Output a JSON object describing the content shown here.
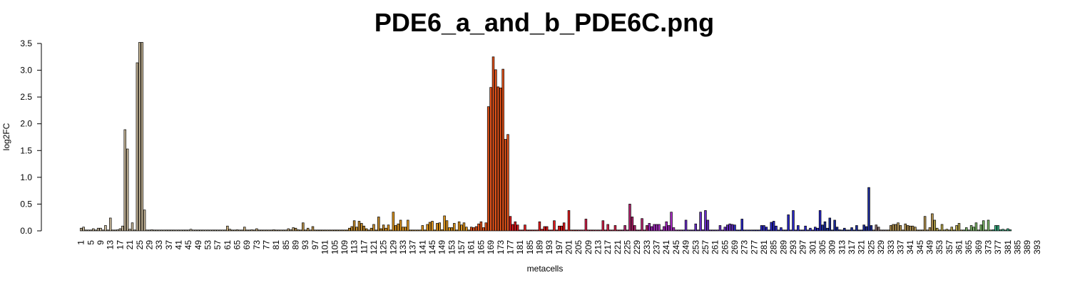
{
  "chart_data": {
    "type": "bar",
    "title": "PDE6_a_and_b_PDE6C.png",
    "xlabel": "metacells",
    "ylabel": "log2FC",
    "ylim": [
      0,
      3.5
    ],
    "y_ticks": [
      "0.0",
      "0.5",
      "1.0",
      "1.5",
      "2.0",
      "2.5",
      "3.0",
      "3.5"
    ],
    "x_tick_labels": [
      "1",
      "5",
      "9",
      "13",
      "17",
      "21",
      "25",
      "29",
      "33",
      "37",
      "41",
      "45",
      "49",
      "53",
      "57",
      "61",
      "65",
      "69",
      "73",
      "77",
      "81",
      "85",
      "89",
      "93",
      "97",
      "101",
      "105",
      "109",
      "113",
      "117",
      "121",
      "125",
      "129",
      "133",
      "137",
      "141",
      "145",
      "149",
      "153",
      "157",
      "161",
      "165",
      "169",
      "173",
      "177",
      "181",
      "185",
      "189",
      "193",
      "197",
      "201",
      "205",
      "209",
      "213",
      "217",
      "221",
      "225",
      "229",
      "233",
      "237",
      "241",
      "245",
      "249",
      "253",
      "257",
      "261",
      "265",
      "269",
      "273",
      "277",
      "281",
      "285",
      "289",
      "293",
      "297",
      "301",
      "305",
      "309",
      "313",
      "317",
      "321",
      "325",
      "329",
      "333",
      "337",
      "341",
      "345",
      "349",
      "353",
      "357",
      "361",
      "365",
      "369",
      "373",
      "377",
      "381",
      "385",
      "389",
      "393"
    ],
    "categories_range": [
      1,
      397
    ],
    "grid": false,
    "legend": "none",
    "color_groups": [
      {
        "from": 1,
        "to": 28,
        "color": "#c8b89a"
      },
      {
        "from": 29,
        "to": 60,
        "color": "#d2c6aa"
      },
      {
        "from": 61,
        "to": 88,
        "color": "#c7ad7e"
      },
      {
        "from": 89,
        "to": 108,
        "color": "#b8904a"
      },
      {
        "from": 109,
        "to": 125,
        "color": "#c48a2a"
      },
      {
        "from": 126,
        "to": 160,
        "color": "#e0961e"
      },
      {
        "from": 161,
        "to": 176,
        "color": "#e8531a"
      },
      {
        "from": 177,
        "to": 204,
        "color": "#e41a1c"
      },
      {
        "from": 205,
        "to": 222,
        "color": "#d6234a"
      },
      {
        "from": 223,
        "to": 233,
        "color": "#b0206a"
      },
      {
        "from": 234,
        "to": 247,
        "color": "#a52ac0"
      },
      {
        "from": 248,
        "to": 268,
        "color": "#6a2ec8"
      },
      {
        "from": 269,
        "to": 304,
        "color": "#2a28c6"
      },
      {
        "from": 305,
        "to": 325,
        "color": "#1c2b9a"
      },
      {
        "from": 326,
        "to": 331,
        "color": "#8a6f6f"
      },
      {
        "from": 332,
        "to": 350,
        "color": "#b39350"
      },
      {
        "from": 351,
        "to": 362,
        "color": "#b8a84a"
      },
      {
        "from": 363,
        "to": 374,
        "color": "#7eb86a"
      },
      {
        "from": 375,
        "to": 388,
        "color": "#3cb88a"
      },
      {
        "from": 389,
        "to": 397,
        "color": "#20c0c4"
      }
    ],
    "values": [
      0.05,
      0.07,
      0,
      0,
      0.01,
      0.04,
      0.01,
      0.05,
      0.05,
      0.01,
      0.1,
      0,
      0.24,
      0,
      0,
      0.02,
      0.04,
      0.09,
      1.89,
      1.53,
      0.03,
      0.15,
      0,
      3.14,
      3.52,
      3.52,
      0.39,
      0,
      0,
      0.02,
      0,
      0,
      0,
      0,
      0,
      0,
      0,
      0,
      0,
      0,
      0.01,
      0,
      0,
      0.01,
      0,
      0.03,
      0.01,
      0,
      0,
      0,
      0,
      0,
      0,
      0,
      0,
      0,
      0,
      0,
      0,
      0,
      0.09,
      0.03,
      0,
      0,
      0.02,
      0,
      0,
      0.07,
      0,
      0,
      0.02,
      0,
      0.04,
      0,
      0.01,
      0,
      0,
      0,
      0,
      0.02,
      0,
      0,
      0,
      0,
      0,
      0.04,
      0.02,
      0.06,
      0.05,
      0.02,
      0,
      0.15,
      0,
      0.05,
      0,
      0.08,
      0,
      0,
      0,
      0.01,
      0,
      0,
      0,
      0,
      0,
      0,
      0,
      0,
      0.01,
      0,
      0.05,
      0.08,
      0.19,
      0.07,
      0.18,
      0.14,
      0.09,
      0.04,
      0,
      0.05,
      0.12,
      0,
      0.26,
      0.04,
      0.11,
      0.05,
      0.11,
      0,
      0.35,
      0.1,
      0.13,
      0.2,
      0.07,
      0.07,
      0.2,
      0,
      0,
      0,
      0,
      0,
      0.1,
      0,
      0.12,
      0.16,
      0.18,
      0,
      0.14,
      0.15,
      0.02,
      0.28,
      0.19,
      0.06,
      0.06,
      0.14,
      0,
      0.17,
      0.11,
      0.15,
      0.07,
      0,
      0.07,
      0.06,
      0.08,
      0.13,
      0.17,
      0.06,
      0.15,
      2.32,
      2.68,
      3.25,
      3.01,
      2.69,
      2.67,
      3.02,
      1.71,
      1.8,
      0.27,
      0.12,
      0.17,
      0.11,
      0,
      0,
      0.11,
      0,
      0,
      0,
      0.01,
      0,
      0.17,
      0.03,
      0.08,
      0.08,
      0,
      0,
      0.19,
      0,
      0.09,
      0.09,
      0.15,
      0,
      0.38,
      0,
      0,
      0,
      0,
      0,
      0,
      0.22,
      0,
      0,
      0,
      0,
      0,
      0,
      0.19,
      0,
      0.12,
      0,
      0,
      0.1,
      0,
      0,
      0,
      0.1,
      0,
      0.5,
      0.26,
      0.1,
      0,
      0,
      0.23,
      0.01,
      0.1,
      0.14,
      0.08,
      0.12,
      0.12,
      0.12,
      0,
      0.08,
      0.17,
      0.1,
      0.35,
      0.06,
      0,
      0,
      0,
      0,
      0.2,
      0,
      0,
      0,
      0.13,
      0.01,
      0.35,
      0.02,
      0.38,
      0.2,
      0,
      0,
      0,
      0,
      0.1,
      0,
      0.07,
      0.11,
      0.13,
      0.12,
      0.11,
      0,
      0,
      0.22,
      0,
      0,
      0,
      0,
      0,
      0,
      0,
      0.1,
      0.1,
      0.07,
      0,
      0.16,
      0.18,
      0.09,
      0,
      0.06,
      0,
      0,
      0.3,
      0,
      0.38,
      0,
      0.1,
      0,
      0,
      0.09,
      0,
      0.05,
      0,
      0.07,
      0.05,
      0.38,
      0.11,
      0.17,
      0.05,
      0.24,
      0,
      0.2,
      0.07,
      0.02,
      0,
      0.05,
      0,
      0,
      0.06,
      0,
      0.1,
      0,
      0,
      0.11,
      0.08,
      0.81,
      0.1,
      0,
      0.11,
      0.07,
      0,
      0,
      0,
      0,
      0.1,
      0.12,
      0.12,
      0.15,
      0.1,
      0,
      0.13,
      0.1,
      0.09,
      0.09,
      0.07,
      0,
      0,
      0,
      0.27,
      0,
      0.06,
      0.32,
      0.2,
      0.05,
      0,
      0.12,
      0,
      0.03,
      0,
      0.07,
      0.01,
      0.1,
      0.14,
      0,
      0.01,
      0.06,
      0,
      0.1,
      0.07,
      0.15,
      0,
      0.11,
      0.19,
      0,
      0.2,
      0,
      0.02,
      0.1,
      0.1,
      0.02,
      0.03,
      0.01,
      0.04,
      0.02
    ]
  }
}
